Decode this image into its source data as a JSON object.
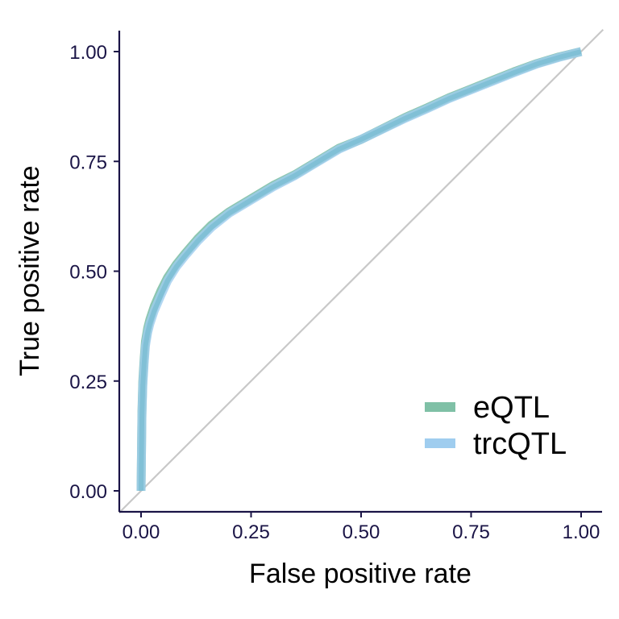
{
  "chart_data": {
    "type": "line",
    "xlabel": "False positive rate",
    "ylabel": "True positive rate",
    "xlim": [
      0,
      1
    ],
    "ylim": [
      0,
      1
    ],
    "x_ticks": [
      "0.00",
      "0.25",
      "0.50",
      "0.75",
      "1.00"
    ],
    "y_ticks": [
      "0.00",
      "0.25",
      "0.50",
      "0.75",
      "1.00"
    ],
    "grid": false,
    "legend_position": "bottom-right",
    "reference_line": {
      "from": [
        0,
        0
      ],
      "to": [
        1,
        1
      ],
      "color": "#c8c8c8"
    },
    "axis_color": "#1a1446",
    "series": [
      {
        "name": "eQTL",
        "color": "#7fc0a6",
        "x": [
          0,
          0.002,
          0.004,
          0.007,
          0.01,
          0.015,
          0.02,
          0.03,
          0.045,
          0.06,
          0.08,
          0.1,
          0.13,
          0.16,
          0.2,
          0.25,
          0.3,
          0.35,
          0.4,
          0.45,
          0.5,
          0.55,
          0.6,
          0.65,
          0.7,
          0.75,
          0.8,
          0.85,
          0.9,
          0.95,
          1.0
        ],
        "y": [
          0,
          0.18,
          0.25,
          0.3,
          0.34,
          0.37,
          0.39,
          0.42,
          0.455,
          0.485,
          0.515,
          0.54,
          0.575,
          0.605,
          0.635,
          0.665,
          0.695,
          0.72,
          0.75,
          0.78,
          0.8,
          0.825,
          0.85,
          0.872,
          0.895,
          0.915,
          0.935,
          0.955,
          0.973,
          0.988,
          1.0
        ]
      },
      {
        "name": "trcQTL",
        "color": "#9fcdef",
        "x": [
          0,
          0.002,
          0.004,
          0.007,
          0.01,
          0.015,
          0.02,
          0.03,
          0.045,
          0.06,
          0.08,
          0.1,
          0.13,
          0.16,
          0.2,
          0.25,
          0.3,
          0.35,
          0.4,
          0.45,
          0.5,
          0.55,
          0.6,
          0.65,
          0.7,
          0.75,
          0.8,
          0.85,
          0.9,
          0.95,
          1.0
        ],
        "y": [
          0,
          0.17,
          0.24,
          0.29,
          0.33,
          0.36,
          0.38,
          0.41,
          0.445,
          0.478,
          0.51,
          0.535,
          0.57,
          0.6,
          0.632,
          0.662,
          0.692,
          0.718,
          0.748,
          0.778,
          0.8,
          0.824,
          0.848,
          0.87,
          0.893,
          0.913,
          0.933,
          0.953,
          0.972,
          0.987,
          1.0
        ]
      }
    ]
  }
}
